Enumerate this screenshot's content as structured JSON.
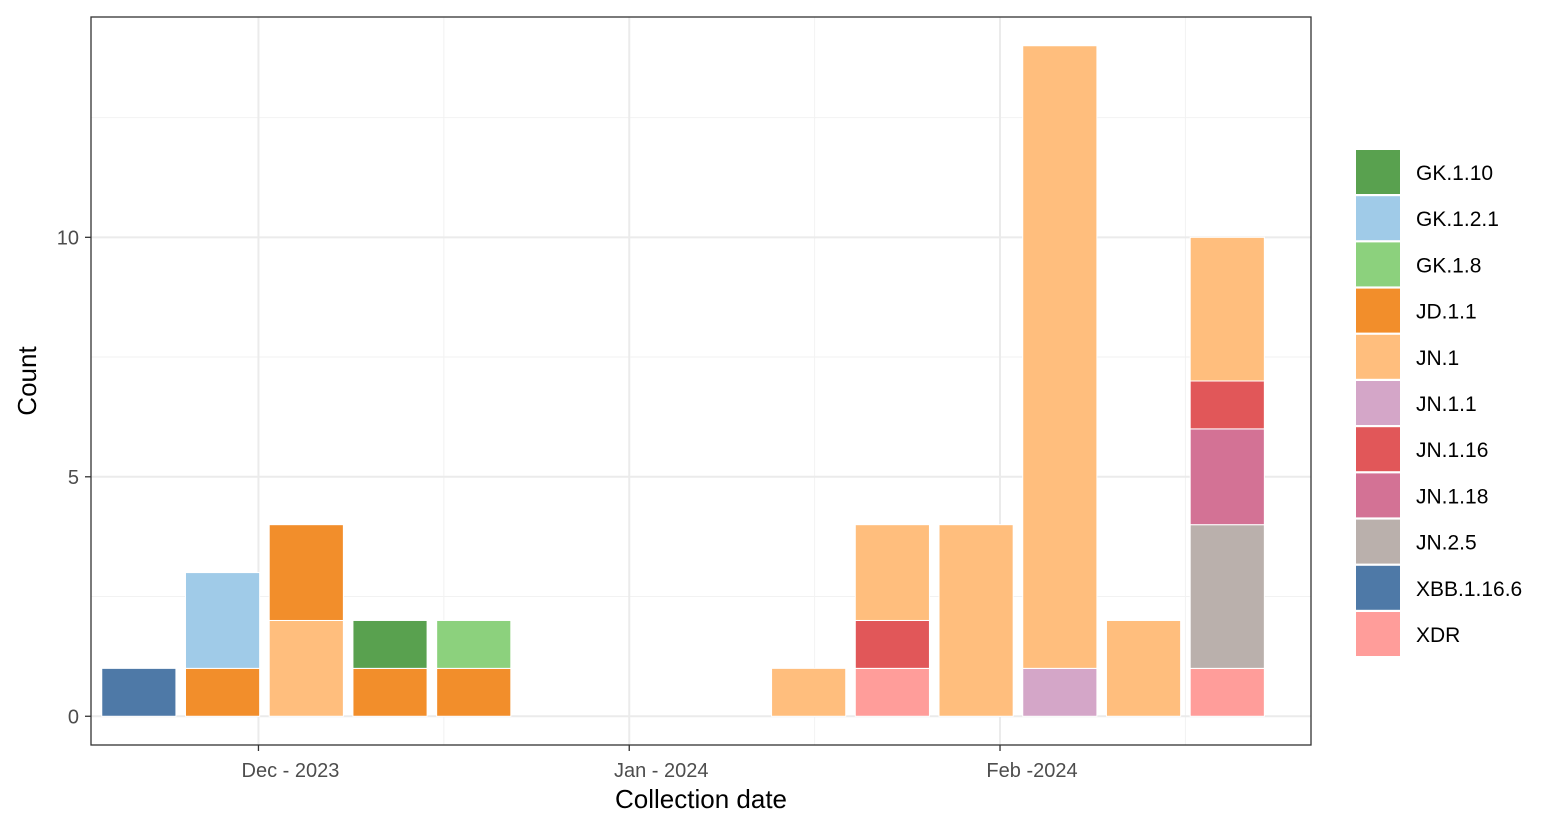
{
  "chart_data": {
    "type": "bar",
    "stacked": true,
    "xlabel": "Collection date",
    "ylabel": "Count",
    "ylim": [
      -0.6,
      14.6
    ],
    "y_ticks": [
      0,
      5,
      10
    ],
    "x_ticks": [
      {
        "label": "Dec - 2023",
        "date": "2023-12-01"
      },
      {
        "label": "Jan - 2024",
        "date": "2024-01-01"
      },
      {
        "label": "Feb -2024",
        "date": "2024-02-01"
      }
    ],
    "x_range": [
      "2023-11-17",
      "2024-02-27"
    ],
    "grid": true,
    "legend_position": "right",
    "series": [
      {
        "name": "GK.1.10",
        "color": "#59A14F"
      },
      {
        "name": "GK.1.2.1",
        "color": "#A0CBE8"
      },
      {
        "name": "GK.1.8",
        "color": "#8CD17D"
      },
      {
        "name": "JD.1.1",
        "color": "#F28E2B"
      },
      {
        "name": "JN.1",
        "color": "#FFBE7D"
      },
      {
        "name": "JN.1.1",
        "color": "#D4A6C8"
      },
      {
        "name": "JN.1.16",
        "color": "#E15759"
      },
      {
        "name": "JN.1.18",
        "color": "#D37295"
      },
      {
        "name": "JN.2.5",
        "color": "#BAB0AC"
      },
      {
        "name": "XBB.1.16.6",
        "color": "#4E79A7"
      },
      {
        "name": "XDR",
        "color": "#FF9D9A"
      }
    ],
    "bars": [
      {
        "date": "2023-11-21",
        "segments": [
          {
            "series": "XBB.1.16.6",
            "value": 1
          }
        ]
      },
      {
        "date": "2023-11-28",
        "segments": [
          {
            "series": "JD.1.1",
            "value": 1
          },
          {
            "series": "GK.1.2.1",
            "value": 2
          }
        ]
      },
      {
        "date": "2023-12-05",
        "segments": [
          {
            "series": "JN.1",
            "value": 2
          },
          {
            "series": "JD.1.1",
            "value": 2
          }
        ]
      },
      {
        "date": "2023-12-12",
        "segments": [
          {
            "series": "JD.1.1",
            "value": 1
          },
          {
            "series": "GK.1.10",
            "value": 1
          }
        ]
      },
      {
        "date": "2023-12-19",
        "segments": [
          {
            "series": "JD.1.1",
            "value": 1
          },
          {
            "series": "GK.1.8",
            "value": 1
          }
        ]
      },
      {
        "date": "2024-01-16",
        "segments": [
          {
            "series": "JN.1",
            "value": 1
          }
        ]
      },
      {
        "date": "2024-01-23",
        "segments": [
          {
            "series": "XDR",
            "value": 1
          },
          {
            "series": "JN.1.16",
            "value": 1
          },
          {
            "series": "JN.1",
            "value": 2
          }
        ]
      },
      {
        "date": "2024-01-30",
        "segments": [
          {
            "series": "JN.1",
            "value": 4
          }
        ]
      },
      {
        "date": "2024-02-06",
        "segments": [
          {
            "series": "JN.1.1",
            "value": 1
          },
          {
            "series": "JN.1",
            "value": 13
          }
        ]
      },
      {
        "date": "2024-02-13",
        "segments": [
          {
            "series": "JN.1",
            "value": 2
          }
        ]
      },
      {
        "date": "2024-02-20",
        "segments": [
          {
            "series": "XDR",
            "value": 1
          },
          {
            "series": "JN.2.5",
            "value": 3
          },
          {
            "series": "JN.1.18",
            "value": 2
          },
          {
            "series": "JN.1.16",
            "value": 1
          },
          {
            "series": "JN.1",
            "value": 3
          }
        ]
      }
    ]
  }
}
